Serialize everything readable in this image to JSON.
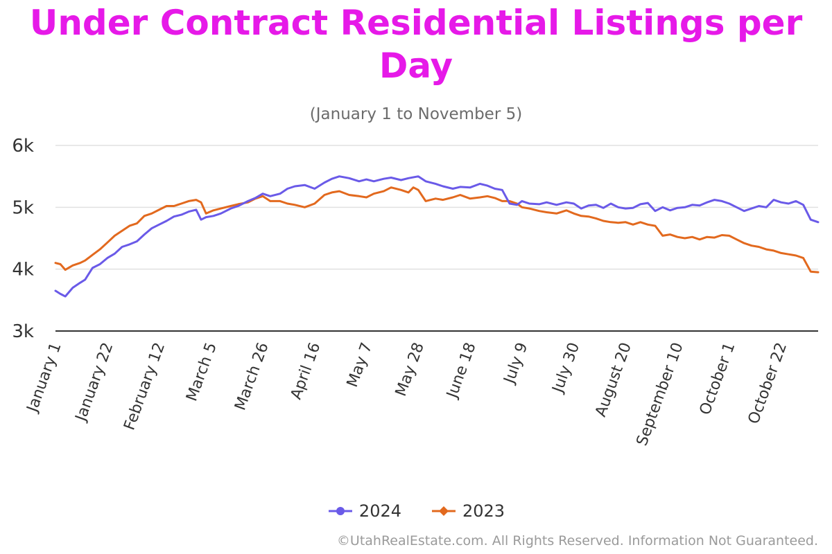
{
  "colors": {
    "title": "#e619e8",
    "series_2024": "#6a5ae8",
    "series_2023": "#e2691e",
    "grid": "#e0e0e0",
    "axis": "#333333",
    "tick": "#333333"
  },
  "title": "Under Contract Residential Listings per Day",
  "subtitle": "(January 1 to November 5)",
  "copyright": "©UtahRealEstate.com. All Rights Reserved. Information Not Guaranteed.",
  "chart_data": {
    "type": "line",
    "title": "Under Contract Residential Listings per Day",
    "subtitle": "(January 1 to November 5)",
    "xlabel": "",
    "ylabel": "",
    "ylim": [
      3000,
      6000
    ],
    "yticks": [
      3000,
      4000,
      5000,
      6000
    ],
    "ytick_labels": [
      "3k",
      "4k",
      "5k",
      "6k"
    ],
    "x_range_days": [
      1,
      310
    ],
    "xtick_labels": [
      "January 1",
      "January 22",
      "February 12",
      "March 5",
      "March 26",
      "April 16",
      "May 7",
      "May 28",
      "June 18",
      "July 9",
      "July 30",
      "August 20",
      "September 10",
      "October 1",
      "October 22"
    ],
    "xtick_days": [
      1,
      22,
      43,
      64,
      85,
      106,
      127,
      148,
      169,
      190,
      211,
      232,
      253,
      274,
      295
    ],
    "grid": true,
    "legend_position": "bottom-center",
    "series": [
      {
        "name": "2024",
        "points": [
          [
            1,
            3650
          ],
          [
            3,
            3600
          ],
          [
            5,
            3560
          ],
          [
            8,
            3700
          ],
          [
            11,
            3780
          ],
          [
            13,
            3830
          ],
          [
            16,
            4020
          ],
          [
            19,
            4080
          ],
          [
            22,
            4180
          ],
          [
            25,
            4250
          ],
          [
            28,
            4360
          ],
          [
            31,
            4400
          ],
          [
            34,
            4450
          ],
          [
            37,
            4560
          ],
          [
            40,
            4660
          ],
          [
            43,
            4720
          ],
          [
            46,
            4780
          ],
          [
            49,
            4850
          ],
          [
            52,
            4880
          ],
          [
            55,
            4930
          ],
          [
            58,
            4960
          ],
          [
            60,
            4800
          ],
          [
            62,
            4840
          ],
          [
            65,
            4860
          ],
          [
            68,
            4900
          ],
          [
            72,
            4980
          ],
          [
            75,
            5020
          ],
          [
            79,
            5100
          ],
          [
            82,
            5150
          ],
          [
            85,
            5220
          ],
          [
            88,
            5180
          ],
          [
            92,
            5220
          ],
          [
            95,
            5300
          ],
          [
            98,
            5340
          ],
          [
            102,
            5360
          ],
          [
            106,
            5300
          ],
          [
            110,
            5400
          ],
          [
            113,
            5460
          ],
          [
            116,
            5500
          ],
          [
            120,
            5470
          ],
          [
            124,
            5420
          ],
          [
            127,
            5450
          ],
          [
            130,
            5420
          ],
          [
            134,
            5460
          ],
          [
            137,
            5480
          ],
          [
            141,
            5440
          ],
          [
            144,
            5470
          ],
          [
            148,
            5500
          ],
          [
            151,
            5420
          ],
          [
            155,
            5380
          ],
          [
            158,
            5340
          ],
          [
            162,
            5300
          ],
          [
            165,
            5330
          ],
          [
            169,
            5320
          ],
          [
            173,
            5380
          ],
          [
            176,
            5350
          ],
          [
            179,
            5300
          ],
          [
            182,
            5280
          ],
          [
            185,
            5060
          ],
          [
            188,
            5040
          ],
          [
            190,
            5100
          ],
          [
            193,
            5060
          ],
          [
            197,
            5050
          ],
          [
            200,
            5080
          ],
          [
            204,
            5040
          ],
          [
            208,
            5080
          ],
          [
            211,
            5060
          ],
          [
            214,
            4980
          ],
          [
            217,
            5030
          ],
          [
            220,
            5040
          ],
          [
            223,
            4990
          ],
          [
            226,
            5060
          ],
          [
            229,
            5000
          ],
          [
            232,
            4980
          ],
          [
            235,
            4990
          ],
          [
            238,
            5050
          ],
          [
            241,
            5070
          ],
          [
            244,
            4940
          ],
          [
            247,
            5000
          ],
          [
            250,
            4950
          ],
          [
            253,
            4990
          ],
          [
            256,
            5000
          ],
          [
            259,
            5040
          ],
          [
            262,
            5030
          ],
          [
            265,
            5080
          ],
          [
            268,
            5120
          ],
          [
            271,
            5100
          ],
          [
            274,
            5060
          ],
          [
            277,
            5000
          ],
          [
            280,
            4940
          ],
          [
            283,
            4980
          ],
          [
            286,
            5020
          ],
          [
            289,
            5000
          ],
          [
            292,
            5120
          ],
          [
            295,
            5080
          ],
          [
            298,
            5060
          ],
          [
            301,
            5100
          ],
          [
            304,
            5040
          ],
          [
            307,
            4800
          ],
          [
            310,
            4760
          ]
        ]
      },
      {
        "name": "2023",
        "points": [
          [
            1,
            4100
          ],
          [
            3,
            4080
          ],
          [
            5,
            3990
          ],
          [
            8,
            4060
          ],
          [
            11,
            4100
          ],
          [
            13,
            4140
          ],
          [
            16,
            4230
          ],
          [
            19,
            4320
          ],
          [
            22,
            4430
          ],
          [
            25,
            4540
          ],
          [
            28,
            4620
          ],
          [
            31,
            4700
          ],
          [
            34,
            4740
          ],
          [
            37,
            4860
          ],
          [
            40,
            4900
          ],
          [
            43,
            4960
          ],
          [
            46,
            5020
          ],
          [
            49,
            5020
          ],
          [
            52,
            5060
          ],
          [
            55,
            5100
          ],
          [
            58,
            5120
          ],
          [
            60,
            5080
          ],
          [
            62,
            4900
          ],
          [
            65,
            4950
          ],
          [
            68,
            4980
          ],
          [
            72,
            5020
          ],
          [
            75,
            5050
          ],
          [
            79,
            5080
          ],
          [
            82,
            5140
          ],
          [
            85,
            5180
          ],
          [
            88,
            5100
          ],
          [
            92,
            5100
          ],
          [
            95,
            5060
          ],
          [
            98,
            5040
          ],
          [
            102,
            5000
          ],
          [
            106,
            5060
          ],
          [
            110,
            5200
          ],
          [
            113,
            5240
          ],
          [
            116,
            5260
          ],
          [
            120,
            5200
          ],
          [
            124,
            5180
          ],
          [
            127,
            5160
          ],
          [
            130,
            5220
          ],
          [
            134,
            5260
          ],
          [
            137,
            5320
          ],
          [
            141,
            5280
          ],
          [
            144,
            5240
          ],
          [
            146,
            5320
          ],
          [
            148,
            5280
          ],
          [
            151,
            5100
          ],
          [
            155,
            5140
          ],
          [
            158,
            5120
          ],
          [
            162,
            5160
          ],
          [
            165,
            5200
          ],
          [
            169,
            5140
          ],
          [
            173,
            5160
          ],
          [
            176,
            5180
          ],
          [
            179,
            5150
          ],
          [
            182,
            5100
          ],
          [
            185,
            5100
          ],
          [
            188,
            5060
          ],
          [
            190,
            5000
          ],
          [
            193,
            4980
          ],
          [
            197,
            4940
          ],
          [
            200,
            4920
          ],
          [
            204,
            4900
          ],
          [
            208,
            4950
          ],
          [
            211,
            4900
          ],
          [
            214,
            4860
          ],
          [
            217,
            4850
          ],
          [
            220,
            4820
          ],
          [
            223,
            4780
          ],
          [
            226,
            4760
          ],
          [
            229,
            4750
          ],
          [
            232,
            4760
          ],
          [
            235,
            4720
          ],
          [
            238,
            4760
          ],
          [
            241,
            4720
          ],
          [
            244,
            4700
          ],
          [
            247,
            4540
          ],
          [
            250,
            4560
          ],
          [
            253,
            4520
          ],
          [
            256,
            4500
          ],
          [
            259,
            4520
          ],
          [
            262,
            4480
          ],
          [
            265,
            4520
          ],
          [
            268,
            4510
          ],
          [
            271,
            4550
          ],
          [
            274,
            4540
          ],
          [
            277,
            4480
          ],
          [
            280,
            4420
          ],
          [
            283,
            4380
          ],
          [
            286,
            4360
          ],
          [
            289,
            4320
          ],
          [
            292,
            4300
          ],
          [
            295,
            4260
          ],
          [
            298,
            4240
          ],
          [
            301,
            4220
          ],
          [
            304,
            4180
          ],
          [
            307,
            3960
          ],
          [
            310,
            3950
          ]
        ]
      }
    ]
  }
}
